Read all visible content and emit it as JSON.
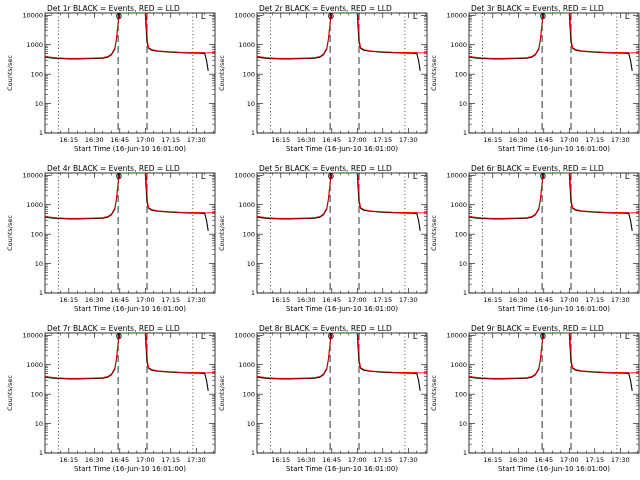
{
  "chart_data": {
    "type": "line",
    "layout": {
      "rows": 3,
      "columns": 3
    },
    "x_tick_labels": [
      "16:15",
      "16:30",
      "16:45",
      "17:00",
      "17:15",
      "17:30"
    ],
    "x_ticks_minutes_after_16h": [
      15,
      30,
      45,
      60,
      75,
      90
    ],
    "xlim_minutes_after_16h": [
      1,
      101
    ],
    "y_tick_labels": [
      "1",
      "10",
      "100",
      "1000",
      "10000"
    ],
    "ylim": [
      1,
      12000
    ],
    "y_scale": "log",
    "xlabel": "Start Time (16-Jun-10 16:01:00)",
    "ylabel": "Counts/sec",
    "dotted_vertical_lines_minutes_after_16h": [
      9,
      88
    ],
    "dashed_vertical_lines_minutes_after_16h": [
      44,
      61
    ],
    "markers": {
      "circle_label": "O",
      "corner_label": "L"
    },
    "series_colors": {
      "events": "#000000",
      "lld": "#ff0000"
    },
    "panels": [
      {
        "title": "Det 1r BLACK = Events, RED = LLD"
      },
      {
        "title": "Det 2r BLACK = Events, RED = LLD"
      },
      {
        "title": "Det 3r BLACK = Events, RED = LLD"
      },
      {
        "title": "Det 4r BLACK = Events, RED = LLD"
      },
      {
        "title": "Det 5r BLACK = Events, RED = LLD"
      },
      {
        "title": "Det 6r BLACK = Events, RED = LLD"
      },
      {
        "title": "Det 7r BLACK = Events, RED = LLD"
      },
      {
        "title": "Det 8r BLACK = Events, RED = LLD"
      },
      {
        "title": "Det 9r BLACK = Events, RED = LLD"
      }
    ],
    "series": [
      {
        "key": "events",
        "x": [
          1,
          4,
          8,
          12,
          16,
          20,
          25,
          30,
          35,
          38,
          40,
          42,
          43,
          44,
          44.6,
          45.5,
          55,
          60,
          60.5,
          61,
          62,
          64,
          68,
          75,
          80,
          86,
          88,
          90,
          92,
          94,
          95,
          96,
          97
        ],
        "y": [
          380,
          360,
          340,
          335,
          330,
          330,
          335,
          340,
          350,
          380,
          450,
          700,
          1500,
          5000,
          12000,
          12000,
          12000,
          12000,
          4000,
          1200,
          750,
          650,
          600,
          560,
          540,
          530,
          520,
          520,
          520,
          510,
          500,
          300,
          130
        ]
      },
      {
        "key": "lld",
        "x": [
          1,
          4,
          8,
          12,
          16,
          20,
          25,
          30,
          35,
          38,
          40,
          42,
          43,
          44,
          44.8,
          45.8,
          55,
          60.2,
          60.8,
          61.3,
          62,
          64,
          68,
          75,
          80,
          86,
          88,
          90,
          92,
          94,
          95,
          96,
          97,
          100,
          101
        ],
        "y": [
          400,
          380,
          360,
          350,
          345,
          345,
          350,
          355,
          365,
          400,
          480,
          750,
          1600,
          5500,
          12000,
          12000,
          12000,
          12000,
          4200,
          1300,
          800,
          680,
          620,
          580,
          560,
          550,
          545,
          545,
          545,
          540,
          535,
          530,
          530,
          540,
          545
        ]
      }
    ]
  }
}
